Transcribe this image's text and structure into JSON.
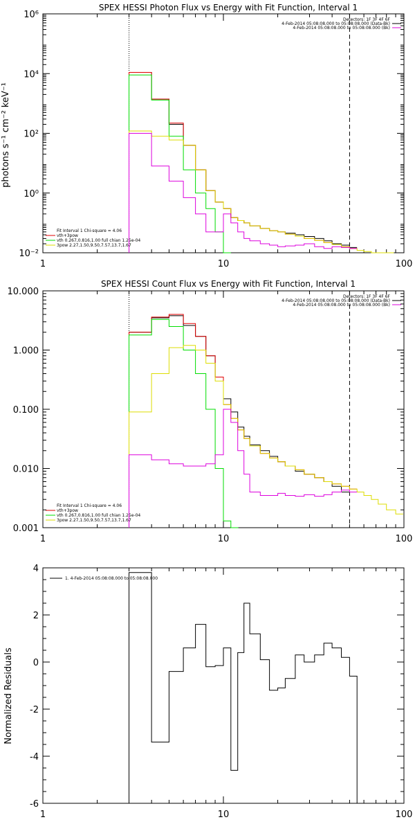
{
  "colors": {
    "data": "#000000",
    "total": "#e00000",
    "thermal": "#00dd00",
    "powerlaw": "#dddd00",
    "background": "#dd00dd"
  },
  "chart_data": [
    {
      "type": "line",
      "title": "SPEX HESSI Photon Flux vs Energy with Fit Function, Interval 1",
      "xlabel": "",
      "ylabel": "photons s⁻¹ cm⁻² keV⁻¹",
      "xscale": "log",
      "yscale": "log",
      "xlim": [
        1,
        100
      ],
      "ylim": [
        0.01,
        1000000
      ],
      "xtick_labels": [
        "1",
        "10",
        "100"
      ],
      "ytick_labels": [
        "10⁻²",
        "10⁰",
        "10²",
        "10⁴",
        "10⁶"
      ],
      "vlines": [
        {
          "x": 3,
          "style": "dotted"
        },
        {
          "x": 50,
          "style": "dashed"
        }
      ],
      "legend_top": [
        "Detectors: 1F 3F 4F 6F",
        "4-Feb-2014 05:08:08.000 to 05:08:08.000 (Data-Bk)",
        "4-Feb-2014 05:08:08.000 to 05:08:08.000 (Bk)"
      ],
      "legend_bottom": [
        "Fit Interval 1   Chi-square = 4.06",
        "vth+3pow",
        "vth 0.267,0.816,1.00  full chian 1.25e-04",
        "3pow 2.27,1.50,9.50,7.57,13.7,1.67"
      ],
      "series": [
        {
          "name": "Data-Bk",
          "color": "#000000",
          "x": [
            3,
            4,
            5,
            6,
            7,
            8,
            9,
            10,
            11,
            12,
            13,
            14,
            16,
            18,
            20,
            22,
            25,
            28,
            32,
            36,
            40,
            45,
            50
          ],
          "y": [
            11000,
            1400,
            200,
            40,
            6,
            1.2,
            0.5,
            0.3,
            0.15,
            0.12,
            0.1,
            0.08,
            0.065,
            0.055,
            0.05,
            0.045,
            0.04,
            0.035,
            0.03,
            0.025,
            0.02,
            0.018,
            0.015
          ]
        },
        {
          "name": "vth+3pow",
          "color": "#e00000",
          "x": [
            3,
            4,
            5,
            6,
            7,
            8,
            9,
            10,
            11,
            12,
            13,
            14,
            16,
            18,
            20,
            22,
            25,
            28,
            32,
            36,
            40,
            45,
            50
          ],
          "y": [
            11000,
            1400,
            220,
            40,
            6,
            1.2,
            0.5,
            0.3,
            0.15,
            0.12,
            0.1,
            0.08,
            0.065,
            0.055,
            0.05,
            0.042,
            0.036,
            0.03,
            0.026,
            0.022,
            0.019,
            0.016,
            0.014
          ]
        },
        {
          "name": "vth",
          "color": "#00dd00",
          "x": [
            3,
            4,
            5,
            6,
            7,
            8,
            9,
            10
          ],
          "y": [
            9000,
            1300,
            80,
            6,
            1,
            0.3,
            0.05,
            0.01
          ]
        },
        {
          "name": "3pow",
          "color": "#dddd00",
          "x": [
            3,
            4,
            5,
            6,
            7,
            8,
            9,
            10,
            11,
            12,
            13,
            14,
            16,
            18,
            20,
            22,
            25,
            28,
            32,
            36,
            40,
            45,
            50,
            55,
            60,
            66,
            72,
            80
          ],
          "y": [
            120,
            80,
            60,
            40,
            6,
            1.2,
            0.5,
            0.3,
            0.15,
            0.12,
            0.1,
            0.08,
            0.065,
            0.055,
            0.05,
            0.042,
            0.036,
            0.03,
            0.026,
            0.022,
            0.019,
            0.016,
            0.014,
            0.012,
            0.011,
            0.01,
            0.009,
            0.008
          ]
        },
        {
          "name": "Bk",
          "color": "#dd00dd",
          "x": [
            3,
            4,
            5,
            6,
            7,
            8,
            9,
            10,
            11,
            12,
            13,
            14,
            16,
            18,
            20,
            22,
            25,
            28,
            32,
            36,
            40,
            45,
            50
          ],
          "y": [
            100,
            8,
            2.5,
            0.7,
            0.2,
            0.05,
            0.05,
            0.2,
            0.1,
            0.05,
            0.03,
            0.025,
            0.02,
            0.018,
            0.016,
            0.017,
            0.018,
            0.02,
            0.016,
            0.014,
            0.016,
            0.015,
            0.014
          ]
        }
      ]
    },
    {
      "type": "line",
      "title": "SPEX HESSI Count Flux vs Energy with Fit Function, Interval 1",
      "xlabel": "",
      "ylabel": "",
      "xscale": "log",
      "yscale": "log",
      "xlim": [
        1,
        100
      ],
      "ylim": [
        0.001,
        10
      ],
      "xtick_labels": [
        "1",
        "10",
        "100"
      ],
      "ytick_labels": [
        "0.001",
        "0.010",
        "0.100",
        "1.000",
        "10.000"
      ],
      "vlines": [
        {
          "x": 3,
          "style": "dotted"
        },
        {
          "x": 50,
          "style": "dashed"
        }
      ],
      "legend_top": [
        "Detectors: 1F 3F 4F 6F",
        "4-Feb-2014 05:08:08.000 to 05:08:08.000 (Data-Bk)",
        "4-Feb-2014 05:08:08.000 to 05:08:08.000 (Bk)"
      ],
      "legend_bottom": [
        "Fit Interval 1   Chi-square = 4.06",
        "vth+3pow",
        "vth 0.267,0.816,1.00  full chian 1.25e-04",
        "3pow 2.27,1.50,9.50,7.57,13.7,1.67"
      ],
      "series": [
        {
          "name": "Data-Bk",
          "color": "#000000",
          "x": [
            3,
            4,
            5,
            6,
            7,
            8,
            9,
            10,
            11,
            12,
            13,
            14,
            16,
            18,
            20,
            22,
            25,
            28,
            32,
            36,
            40,
            45,
            50
          ],
          "y": [
            2.0,
            3.5,
            3.8,
            2.6,
            1.7,
            0.8,
            0.35,
            0.15,
            0.09,
            0.05,
            0.035,
            0.025,
            0.02,
            0.016,
            0.013,
            0.011,
            0.009,
            0.008,
            0.007,
            0.006,
            0.005,
            0.004,
            0.004
          ]
        },
        {
          "name": "vth+3pow",
          "color": "#e00000",
          "x": [
            3,
            4,
            5,
            6,
            7,
            8,
            9,
            10,
            11,
            12,
            13,
            14,
            16,
            18,
            20,
            22,
            25,
            28,
            32,
            36,
            40,
            45,
            50
          ],
          "y": [
            2.0,
            3.6,
            4.0,
            2.8,
            1.7,
            0.8,
            0.35,
            0.12,
            0.07,
            0.045,
            0.032,
            0.024,
            0.018,
            0.015,
            0.013,
            0.011,
            0.0095,
            0.008,
            0.007,
            0.006,
            0.0055,
            0.005,
            0.0045
          ]
        },
        {
          "name": "vth",
          "color": "#00dd00",
          "x": [
            3,
            4,
            5,
            6,
            7,
            8,
            9,
            10,
            11
          ],
          "y": [
            1.8,
            3.3,
            2.5,
            1.0,
            0.4,
            0.1,
            0.01,
            0.0013,
            0.001
          ]
        },
        {
          "name": "3pow",
          "color": "#dddd00",
          "x": [
            3,
            4,
            5,
            6,
            7,
            8,
            9,
            10,
            11,
            12,
            13,
            14,
            16,
            18,
            20,
            22,
            25,
            28,
            32,
            36,
            40,
            45,
            50,
            55,
            60,
            66,
            72,
            80,
            90
          ],
          "y": [
            0.09,
            0.4,
            1.1,
            1.2,
            1.0,
            0.6,
            0.3,
            0.12,
            0.07,
            0.045,
            0.032,
            0.024,
            0.018,
            0.015,
            0.013,
            0.011,
            0.0095,
            0.008,
            0.007,
            0.006,
            0.0055,
            0.005,
            0.0045,
            0.004,
            0.0035,
            0.003,
            0.0025,
            0.002,
            0.0017
          ]
        },
        {
          "name": "Bk",
          "color": "#dd00dd",
          "x": [
            3,
            4,
            5,
            6,
            7,
            8,
            9,
            10,
            11,
            12,
            13,
            14,
            16,
            18,
            20,
            22,
            25,
            28,
            32,
            36,
            40,
            45,
            50
          ],
          "y": [
            0.017,
            0.014,
            0.012,
            0.011,
            0.011,
            0.012,
            0.017,
            0.1,
            0.06,
            0.02,
            0.008,
            0.004,
            0.0035,
            0.0035,
            0.0038,
            0.0035,
            0.0034,
            0.0036,
            0.0034,
            0.0036,
            0.004,
            0.0043,
            0.004
          ]
        }
      ]
    },
    {
      "type": "line",
      "title": "",
      "xlabel": "",
      "ylabel": "Normalized  Residuals",
      "xscale": "log",
      "yscale": "linear",
      "xlim": [
        1,
        100
      ],
      "ylim": [
        -6,
        4
      ],
      "xtick_labels": [
        "1",
        "10",
        "100"
      ],
      "ytick_labels": [
        "-6",
        "-4",
        "-2",
        "0",
        "2",
        "4"
      ],
      "legend_top": [
        "1.  4-Feb-2014 05:08:08.000 to 05:08:08.000"
      ],
      "series": [
        {
          "name": "Residuals",
          "color": "#000000",
          "x": [
            3,
            4,
            5,
            6,
            7,
            8,
            9,
            10,
            11,
            12,
            13,
            14,
            16,
            18,
            20,
            22,
            25,
            28,
            32,
            36,
            40,
            45,
            50
          ],
          "y": [
            3.8,
            -3.4,
            -0.4,
            0.6,
            1.6,
            -0.2,
            -0.15,
            0.6,
            -4.6,
            0.4,
            2.5,
            1.2,
            0.1,
            -1.2,
            -1.1,
            -0.7,
            0.3,
            0.0,
            0.3,
            0.8,
            0.6,
            0.2,
            -0.6
          ]
        }
      ]
    }
  ]
}
